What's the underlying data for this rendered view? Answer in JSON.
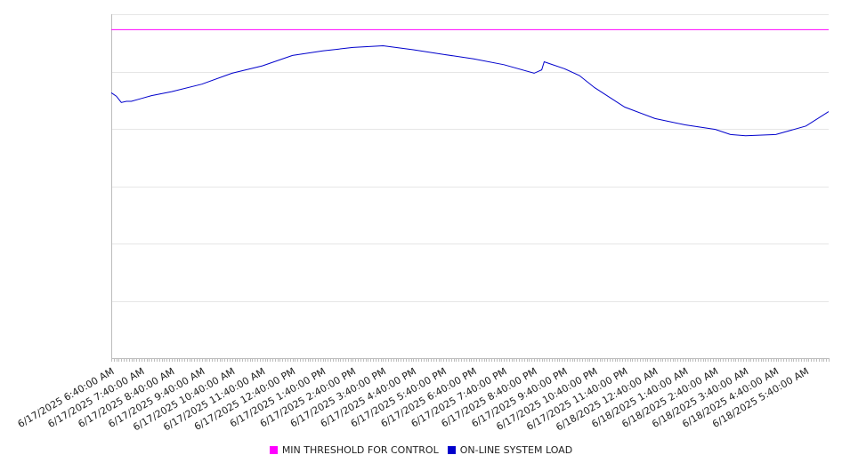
{
  "chart_data": {
    "type": "line",
    "title": "",
    "xlabel": "",
    "ylabel": "",
    "grid": true,
    "legend_position": "bottom",
    "x_tick_labels": [
      "6/17/2025 6:40:00 AM",
      "6/17/2025 7:40:00 AM",
      "6/17/2025 8:40:00 AM",
      "6/17/2025 9:40:00 AM",
      "6/17/2025 10:40:00 AM",
      "6/17/2025 11:40:00 AM",
      "6/17/2025 12:40:00 PM",
      "6/17/2025 1:40:00 PM",
      "6/17/2025 2:40:00 PM",
      "6/17/2025 3:40:00 PM",
      "6/17/2025 4:40:00 PM",
      "6/17/2025 5:40:00 PM",
      "6/17/2025 6:40:00 PM",
      "6/17/2025 7:40:00 PM",
      "6/17/2025 8:40:00 PM",
      "6/17/2025 9:40:00 PM",
      "6/17/2025 10:40:00 PM",
      "6/17/2025 11:40:00 PM",
      "6/18/2025 12:40:00 AM",
      "6/18/2025 1:40:00 AM",
      "6/18/2025 2:40:00 AM",
      "6/18/2025 3:40:00 AM",
      "6/18/2025 4:40:00 AM",
      "6/18/2025 5:40:00 AM"
    ],
    "x_range": [
      "6/17/2025 6:40:00 AM",
      "6/18/2025 6:25:00 AM"
    ],
    "y_range": [
      0,
      6
    ],
    "y_gridlines": [
      1,
      2,
      3,
      4,
      5,
      6
    ],
    "series": [
      {
        "name": "MIN THRESHOLD FOR CONTROL",
        "color": "#ff00ff",
        "points": [
          [
            "6/17/2025 6:40:00 AM",
            5.73
          ],
          [
            "6/18/2025 6:25:00 AM",
            5.73
          ]
        ]
      },
      {
        "name": "ON-LINE SYSTEM LOAD",
        "color": "#0000cc",
        "points": [
          [
            "6/17/2025 6:40:00 AM",
            4.63
          ],
          [
            "6/17/2025 6:50:00 AM",
            4.57
          ],
          [
            "6/17/2025 7:00:00 AM",
            4.46
          ],
          [
            "6/17/2025 7:10:00 AM",
            4.48
          ],
          [
            "6/17/2025 7:20:00 AM",
            4.48
          ],
          [
            "6/17/2025 7:40:00 AM",
            4.53
          ],
          [
            "6/17/2025 8:00:00 AM",
            4.58
          ],
          [
            "6/17/2025 8:40:00 AM",
            4.65
          ],
          [
            "6/17/2025 9:40:00 AM",
            4.78
          ],
          [
            "6/17/2025 10:40:00 AM",
            4.97
          ],
          [
            "6/17/2025 11:40:00 AM",
            5.1
          ],
          [
            "6/17/2025 12:40:00 PM",
            5.28
          ],
          [
            "6/17/2025 1:40:00 PM",
            5.36
          ],
          [
            "6/17/2025 2:40:00 PM",
            5.42
          ],
          [
            "6/17/2025 3:40:00 PM",
            5.45
          ],
          [
            "6/17/2025 4:40:00 PM",
            5.38
          ],
          [
            "6/17/2025 5:40:00 PM",
            5.3
          ],
          [
            "6/17/2025 6:40:00 PM",
            5.22
          ],
          [
            "6/17/2025 7:40:00 PM",
            5.12
          ],
          [
            "6/17/2025 8:40:00 PM",
            4.97
          ],
          [
            "6/17/2025 8:55:00 PM",
            5.03
          ],
          [
            "6/17/2025 9:00:00 PM",
            5.17
          ],
          [
            "6/17/2025 9:10:00 PM",
            5.14
          ],
          [
            "6/17/2025 9:40:00 PM",
            5.05
          ],
          [
            "6/17/2025 10:10:00 PM",
            4.93
          ],
          [
            "6/17/2025 10:40:00 PM",
            4.72
          ],
          [
            "6/17/2025 11:40:00 PM",
            4.38
          ],
          [
            "6/18/2025 12:40:00 AM",
            4.18
          ],
          [
            "6/18/2025 1:40:00 AM",
            4.07
          ],
          [
            "6/18/2025 2:40:00 AM",
            3.99
          ],
          [
            "6/18/2025 3:10:00 AM",
            3.9
          ],
          [
            "6/18/2025 3:40:00 AM",
            3.88
          ],
          [
            "6/18/2025 4:40:00 AM",
            3.9
          ],
          [
            "6/18/2025 5:40:00 AM",
            4.05
          ],
          [
            "6/18/2025 6:25:00 AM",
            4.3
          ]
        ]
      }
    ]
  },
  "legend": {
    "items": [
      {
        "label": "MIN THRESHOLD FOR CONTROL",
        "color": "#ff00ff"
      },
      {
        "label": "ON-LINE SYSTEM LOAD",
        "color": "#0000cc"
      }
    ]
  }
}
